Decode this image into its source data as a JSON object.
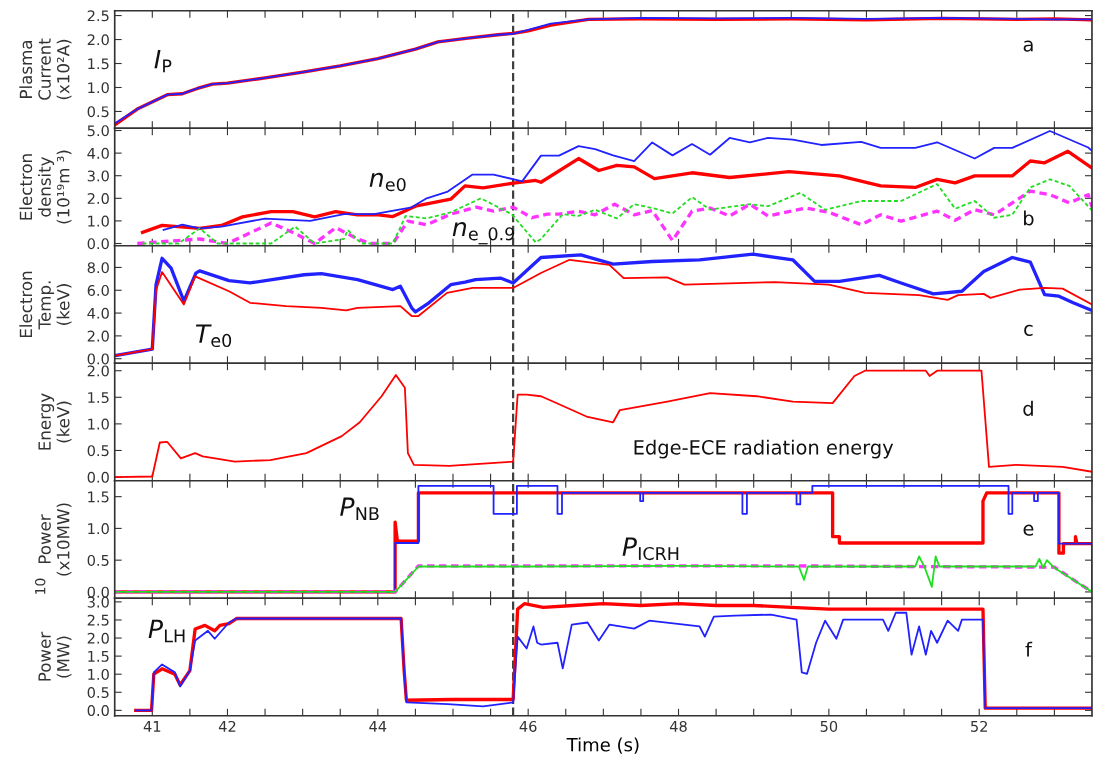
{
  "chart_data": [
    {
      "type": "line",
      "ylabel": "Plasma\nCurrent\n(x10²A)",
      "xlim": [
        40.5,
        53.5
      ],
      "ylim": [
        0.15,
        2.6
      ],
      "tick_labels": "y",
      "xticks": [
        41,
        {
          "value": 41.5,
          "label": null
        },
        42,
        {
          "value": 42.5,
          "label": null
        },
        {
          "value": 43,
          "label": null
        },
        {
          "value": 43.5,
          "label": null
        },
        44,
        {
          "value": 44.5,
          "label": null
        },
        {
          "value": 45,
          "label": null
        },
        {
          "value": 45.5,
          "label": null
        },
        46,
        {
          "value": 46.5,
          "label": null
        },
        {
          "value": 47,
          "label": null
        },
        {
          "value": 47.5,
          "label": null
        },
        48,
        {
          "value": 48.5,
          "label": null
        },
        {
          "value": 49,
          "label": null
        },
        {
          "value": 49.5,
          "label": null
        },
        50,
        {
          "value": 50.5,
          "label": null
        },
        {
          "value": 51,
          "label": null
        },
        {
          "value": 51.5,
          "label": null
        },
        52,
        {
          "value": 52.5,
          "label": null
        },
        {
          "value": 53,
          "label": null
        }
      ],
      "yticks": [
        {
          "value": 0.5,
          "label": "0.5"
        },
        {
          "value": 1,
          "label": "1.0"
        },
        {
          "value": 1.5,
          "label": "1.5"
        },
        {
          "value": 2,
          "label": "2.0"
        },
        {
          "value": 2.5,
          "label": "2.5"
        }
      ],
      "series": [
        {
          "color": "#ff0000",
          "x": [
            40.5,
            40.8,
            41.2,
            41.4,
            41.6,
            41.8,
            42.0,
            42.5,
            43.0,
            43.5,
            44.0,
            44.5,
            44.8,
            45.2,
            45.6,
            45.8,
            46.0,
            46.3,
            46.8,
            47.5,
            48.5,
            49.5,
            50.5,
            51.5,
            52.5,
            53.0,
            53.5
          ],
          "values": [
            0.22,
            0.55,
            0.85,
            0.87,
            0.98,
            1.07,
            1.09,
            1.2,
            1.32,
            1.45,
            1.6,
            1.8,
            1.95,
            2.03,
            2.1,
            2.13,
            2.18,
            2.3,
            2.42,
            2.43,
            2.42,
            2.43,
            2.41,
            2.44,
            2.42,
            2.43,
            2.41
          ]
        },
        {
          "color": "#2222ff",
          "x": [
            40.5,
            40.8,
            41.2,
            41.4,
            41.6,
            41.8,
            42.0,
            42.5,
            43.0,
            43.5,
            44.0,
            44.5,
            44.8,
            45.2,
            45.6,
            45.8,
            46.0,
            46.3,
            46.8,
            47.5,
            48.5,
            49.5,
            50.5,
            51.5,
            52.5,
            53.0,
            53.5
          ],
          "values": [
            0.25,
            0.55,
            0.85,
            0.87,
            0.98,
            1.07,
            1.09,
            1.2,
            1.32,
            1.45,
            1.6,
            1.8,
            1.95,
            2.03,
            2.1,
            2.12,
            2.2,
            2.33,
            2.42,
            2.45,
            2.44,
            2.45,
            2.43,
            2.45,
            2.43,
            2.42,
            2.42
          ]
        }
      ],
      "ref_lines": [
        {
          "axis": "x",
          "value": 45.8,
          "color": "#404040",
          "line_style": "dashed"
        }
      ],
      "annotations": [
        "a",
        "I$_{P}$"
      ]
    },
    {
      "type": "line",
      "ylabel": "Electron\ndensity\n(10¹⁹m ³)",
      "xlim": [
        40.5,
        53.5
      ],
      "ylim": [
        -0.1,
        5.1
      ],
      "tick_labels": "y",
      "xticks": [
        41,
        {
          "value": 41.5,
          "label": null
        },
        42,
        {
          "value": 42.5,
          "label": null
        },
        {
          "value": 43,
          "label": null
        },
        {
          "value": 43.5,
          "label": null
        },
        44,
        {
          "value": 44.5,
          "label": null
        },
        {
          "value": 45,
          "label": null
        },
        {
          "value": 45.5,
          "label": null
        },
        46,
        {
          "value": 46.5,
          "label": null
        },
        {
          "value": 47,
          "label": null
        },
        {
          "value": 47.5,
          "label": null
        },
        48,
        {
          "value": 48.5,
          "label": null
        },
        {
          "value": 49,
          "label": null
        },
        {
          "value": 49.5,
          "label": null
        },
        50,
        {
          "value": 50.5,
          "label": null
        },
        {
          "value": 51,
          "label": null
        },
        {
          "value": 51.5,
          "label": null
        },
        52,
        {
          "value": 52.5,
          "label": null
        },
        {
          "value": 53,
          "label": null
        }
      ],
      "yticks": [
        {
          "value": 0,
          "label": "0.0"
        },
        {
          "value": 1,
          "label": "1.0"
        },
        {
          "value": 2,
          "label": "2.0"
        },
        {
          "value": 3,
          "label": "3.0"
        },
        {
          "value": 4,
          "label": "4.0"
        },
        {
          "value": 5,
          "label": "5.0"
        }
      ],
      "series": [
        {
          "color": "#ff0000",
          "x": [
            40.87,
            41.13,
            41.63,
            41.92,
            42.2,
            42.58,
            42.87,
            43.16,
            43.44,
            43.73,
            44.01,
            44.2,
            44.5,
            44.97,
            45.16,
            45.4,
            45.78,
            46.1,
            46.17,
            46.67,
            46.94,
            47.18,
            47.41,
            47.68,
            48.18,
            48.68,
            49.47,
            50.14,
            50.69,
            51.15,
            51.44,
            51.68,
            51.94,
            52.44,
            52.68,
            52.87,
            53.18,
            53.5
          ],
          "values": [
            0.49,
            0.8,
            0.67,
            0.8,
            1.18,
            1.41,
            1.41,
            1.18,
            1.41,
            1.27,
            1.27,
            1.19,
            1.65,
            1.96,
            2.55,
            2.46,
            2.66,
            2.79,
            2.71,
            3.76,
            3.23,
            3.46,
            3.39,
            2.87,
            3.13,
            2.92,
            3.18,
            2.99,
            2.55,
            2.48,
            2.84,
            2.68,
            2.99,
            2.99,
            3.65,
            3.57,
            4.08,
            3.34
          ]
        },
        {
          "color": "#2222ff",
          "x": [
            41.15,
            41.4,
            41.63,
            41.92,
            42.5,
            43.1,
            43.55,
            43.95,
            44.45,
            44.65,
            44.93,
            45.26,
            45.54,
            45.92,
            46.17,
            46.41,
            46.67,
            46.89,
            47.13,
            47.41,
            47.65,
            47.92,
            48.18,
            48.42,
            48.68,
            48.95,
            49.19,
            49.52,
            49.9,
            50.43,
            50.69,
            51.15,
            51.44,
            51.94,
            52.2,
            52.44,
            52.94,
            53.45,
            53.5
          ],
          "values": [
            0.6,
            0.83,
            0.67,
            0.75,
            1.1,
            1.0,
            1.3,
            1.3,
            1.6,
            2.0,
            2.3,
            3.05,
            3.05,
            2.75,
            3.89,
            3.89,
            4.31,
            4.18,
            3.9,
            3.65,
            4.47,
            3.9,
            4.4,
            3.93,
            4.67,
            4.48,
            4.67,
            4.6,
            4.36,
            4.5,
            4.23,
            4.23,
            4.48,
            3.76,
            4.23,
            4.23,
            4.98,
            4.25,
            4.1
          ]
        },
        {
          "color": "#ff33ff",
          "line_style": "dashed",
          "x": [
            40.8,
            41.63,
            42.0,
            42.58,
            42.87,
            43.16,
            43.44,
            43.73,
            43.9,
            44.2,
            44.4,
            44.65,
            44.97,
            45.31,
            45.54,
            45.8,
            46.05,
            46.25,
            46.41,
            46.67,
            46.89,
            47.15,
            47.41,
            47.65,
            47.92,
            48.18,
            48.42,
            48.68,
            48.95,
            49.19,
            49.69,
            50.0,
            50.43,
            50.69,
            50.96,
            51.44,
            51.68,
            51.94,
            52.2,
            52.68,
            52.94,
            53.2,
            53.45,
            53.5
          ],
          "values": [
            0,
            0.2,
            0,
            0.91,
            0.49,
            0,
            0.7,
            0.2,
            0,
            0,
            0.99,
            0.83,
            1.3,
            1.61,
            1.43,
            1.61,
            1.14,
            1.3,
            1.3,
            1.43,
            1.27,
            1.74,
            1.27,
            1.46,
            0.13,
            1.43,
            1.57,
            1.22,
            1.74,
            1.22,
            1.57,
            1.38,
            0.83,
            1.27,
            0.99,
            1.43,
            1.03,
            1.5,
            1.27,
            2.32,
            2.16,
            1.8,
            2.16,
            1.61
          ]
        },
        {
          "color": "#22dd22",
          "line_style": "dashed",
          "x": [
            40.87,
            41.35,
            41.63,
            41.87,
            42.58,
            42.9,
            43.16,
            43.55,
            43.6,
            43.78,
            44.2,
            44.37,
            44.65,
            44.97,
            45.37,
            45.78,
            46.1,
            46.17,
            46.46,
            46.67,
            46.89,
            47.18,
            47.41,
            47.65,
            47.92,
            48.18,
            48.42,
            48.95,
            49.19,
            49.62,
            49.95,
            50.43,
            50.96,
            51.44,
            51.68,
            51.94,
            52.2,
            52.44,
            52.68,
            52.94,
            53.2,
            53.5
          ],
          "values": [
            0,
            0,
            0.67,
            0,
            0,
            0.75,
            0,
            0.2,
            0.6,
            0,
            0,
            1.22,
            1.11,
            1.38,
            2.0,
            1.3,
            0.05,
            0.2,
            1.3,
            1.22,
            1.49,
            1.11,
            1.74,
            1.57,
            1.33,
            2.05,
            1.5,
            1.74,
            1.65,
            2.24,
            1.49,
            1.88,
            1.88,
            2.63,
            1.54,
            1.88,
            1.14,
            1.27,
            2.48,
            2.84,
            2.55,
            1.46
          ]
        }
      ],
      "ref_lines": [
        {
          "axis": "x",
          "value": 45.8,
          "color": "#404040",
          "line_style": "dashed"
        }
      ],
      "annotations": [
        "b",
        "n$_{e0}$",
        "n$_{e_0.9}$"
      ]
    },
    {
      "type": "line",
      "ylabel": "Electron\nTemp.\n(keV)",
      "xlim": [
        40.5,
        53.5
      ],
      "ylim": [
        -0.4,
        9.9
      ],
      "tick_labels": "y",
      "xticks": [
        41,
        {
          "value": 41.5,
          "label": null
        },
        42,
        {
          "value": 42.5,
          "label": null
        },
        {
          "value": 43,
          "label": null
        },
        {
          "value": 43.5,
          "label": null
        },
        44,
        {
          "value": 44.5,
          "label": null
        },
        {
          "value": 45,
          "label": null
        },
        {
          "value": 45.5,
          "label": null
        },
        46,
        {
          "value": 46.5,
          "label": null
        },
        {
          "value": 47,
          "label": null
        },
        {
          "value": 47.5,
          "label": null
        },
        48,
        {
          "value": 48.5,
          "label": null
        },
        {
          "value": 49,
          "label": null
        },
        {
          "value": 49.5,
          "label": null
        },
        50,
        {
          "value": 50.5,
          "label": null
        },
        {
          "value": 51,
          "label": null
        },
        {
          "value": 51.5,
          "label": null
        },
        52,
        {
          "value": 52.5,
          "label": null
        },
        {
          "value": 53,
          "label": null
        }
      ],
      "yticks": [
        {
          "value": 0,
          "label": "0.0"
        },
        {
          "value": 2,
          "label": "2.0"
        },
        {
          "value": 4,
          "label": "4.0"
        },
        {
          "value": 6,
          "label": "6.0"
        },
        {
          "value": 8,
          "label": "8.0"
        }
      ],
      "series": [
        {
          "color": "#2222ff",
          "x": [
            40.5,
            41.0,
            41.05,
            41.13,
            41.25,
            41.42,
            41.58,
            41.63,
            42.02,
            42.3,
            43.02,
            43.25,
            43.73,
            44.2,
            44.3,
            44.45,
            44.5,
            44.68,
            44.97,
            45.16,
            45.3,
            45.63,
            45.8,
            46.17,
            46.7,
            47.13,
            47.65,
            48.28,
            48.99,
            49.52,
            49.81,
            50.14,
            50.67,
            50.96,
            51.39,
            51.77,
            52.06,
            52.44,
            52.68,
            52.87,
            53.06,
            53.25,
            53.5
          ],
          "values": [
            0.26,
            0.84,
            6.5,
            8.8,
            7.94,
            5.04,
            7.5,
            7.7,
            6.84,
            6.64,
            7.36,
            7.45,
            6.93,
            6.06,
            6.35,
            4.46,
            4.1,
            4.9,
            6.49,
            6.72,
            6.93,
            7.07,
            6.64,
            8.87,
            9.1,
            8.29,
            8.52,
            8.67,
            9.16,
            8.67,
            6.78,
            6.78,
            7.3,
            6.64,
            5.68,
            5.91,
            7.65,
            8.87,
            8.46,
            5.62,
            5.48,
            4.9,
            4.23
          ]
        },
        {
          "color": "#ff0000",
          "x": [
            40.5,
            41.0,
            41.05,
            41.13,
            41.42,
            41.57,
            42.02,
            42.3,
            42.78,
            43.25,
            43.58,
            43.73,
            44.3,
            44.45,
            44.54,
            44.92,
            45.26,
            45.8,
            46.17,
            46.55,
            47.08,
            47.27,
            47.85,
            48.08,
            49.28,
            50.0,
            50.48,
            51.2,
            51.58,
            51.72,
            52.06,
            52.15,
            52.54,
            52.87,
            53.11,
            53.5
          ],
          "values": [
            0.26,
            0.84,
            6.0,
            7.6,
            4.75,
            7.22,
            5.91,
            4.9,
            4.61,
            4.46,
            4.23,
            4.46,
            4.61,
            3.74,
            3.74,
            5.77,
            6.2,
            6.2,
            7.51,
            8.67,
            8.23,
            7.07,
            7.13,
            6.49,
            6.72,
            6.49,
            5.77,
            5.57,
            5.16,
            5.57,
            5.68,
            5.33,
            6.06,
            6.2,
            6.14,
            4.75
          ]
        }
      ],
      "ref_lines": [
        {
          "axis": "x",
          "value": 45.8,
          "color": "#404040",
          "line_style": "dashed"
        }
      ],
      "annotations": [
        "c",
        "T$_{e0}$"
      ]
    },
    {
      "type": "line",
      "ylabel": "Energy\n(keV)",
      "xlim": [
        40.5,
        53.5
      ],
      "ylim": [
        -0.07,
        2.14
      ],
      "tick_labels": "y",
      "xticks": [
        41,
        {
          "value": 41.5,
          "label": null
        },
        42,
        {
          "value": 42.5,
          "label": null
        },
        {
          "value": 43,
          "label": null
        },
        {
          "value": 43.5,
          "label": null
        },
        44,
        {
          "value": 44.5,
          "label": null
        },
        {
          "value": 45,
          "label": null
        },
        {
          "value": 45.5,
          "label": null
        },
        46,
        {
          "value": 46.5,
          "label": null
        },
        {
          "value": 47,
          "label": null
        },
        {
          "value": 47.5,
          "label": null
        },
        48,
        {
          "value": 48.5,
          "label": null
        },
        {
          "value": 49,
          "label": null
        },
        {
          "value": 49.5,
          "label": null
        },
        50,
        {
          "value": 50.5,
          "label": null
        },
        {
          "value": 51,
          "label": null
        },
        {
          "value": 51.5,
          "label": null
        },
        52,
        {
          "value": 52.5,
          "label": null
        },
        {
          "value": 53,
          "label": null
        }
      ],
      "yticks": [
        {
          "value": 0,
          "label": "0.0"
        },
        {
          "value": 0.5,
          "label": "0.5"
        },
        {
          "value": 1,
          "label": "1.0"
        },
        {
          "value": 1.5,
          "label": "1.5"
        },
        {
          "value": 2,
          "label": "2.0"
        }
      ],
      "series": [
        {
          "color": "#ff0000",
          "x": [
            40.5,
            41.0,
            41.1,
            41.2,
            41.38,
            41.57,
            41.67,
            42.1,
            42.57,
            43.05,
            43.52,
            43.76,
            44.05,
            44.24,
            44.36,
            44.4,
            44.48,
            44.95,
            45.8,
            45.86,
            45.98,
            46.17,
            46.33,
            46.79,
            47.13,
            47.22,
            47.85,
            48.42,
            49.04,
            49.52,
            50.05,
            50.34,
            50.48,
            51.29,
            51.34,
            51.44,
            52.03,
            52.13,
            52.49,
            53.11,
            53.5
          ],
          "values": [
            0,
            0.01,
            0.65,
            0.66,
            0.35,
            0.45,
            0.39,
            0.29,
            0.32,
            0.45,
            0.77,
            1.03,
            1.52,
            1.92,
            1.68,
            0.45,
            0.23,
            0.21,
            0.29,
            1.55,
            1.55,
            1.52,
            1.42,
            1.13,
            1.03,
            1.26,
            1.42,
            1.58,
            1.52,
            1.42,
            1.39,
            1.9,
            2.0,
            2.0,
            1.9,
            2.0,
            2.0,
            0.19,
            0.23,
            0.19,
            0.1
          ]
        }
      ],
      "ref_lines": [
        {
          "axis": "x",
          "value": 45.8,
          "color": "#404040",
          "line_style": "dashed"
        }
      ],
      "annotations": [
        "d",
        "Edge-ECE radiation energy"
      ]
    },
    {
      "type": "line",
      "ylabel": "Power\n(x10MW)",
      "xlim": [
        40.5,
        53.5
      ],
      "ylim": [
        -0.1,
        1.75
      ],
      "tick_labels": "y",
      "xticks": [
        41,
        {
          "value": 41.5,
          "label": null
        },
        42,
        {
          "value": 42.5,
          "label": null
        },
        {
          "value": 43,
          "label": null
        },
        {
          "value": 43.5,
          "label": null
        },
        44,
        {
          "value": 44.5,
          "label": null
        },
        {
          "value": 45,
          "label": null
        },
        {
          "value": 45.5,
          "label": null
        },
        46,
        {
          "value": 46.5,
          "label": null
        },
        {
          "value": 47,
          "label": null
        },
        {
          "value": 47.5,
          "label": null
        },
        48,
        {
          "value": 48.5,
          "label": null
        },
        {
          "value": 49,
          "label": null
        },
        {
          "value": 49.5,
          "label": null
        },
        50,
        {
          "value": 50.5,
          "label": null
        },
        {
          "value": 51,
          "label": null
        },
        {
          "value": 51.5,
          "label": null
        },
        52,
        {
          "value": 52.5,
          "label": null
        },
        {
          "value": 53,
          "label": null
        }
      ],
      "yticks": [
        {
          "value": 0,
          "label": "0.0"
        },
        {
          "value": 0.5,
          "label": "0.5"
        },
        {
          "value": 1,
          "label": "1.0"
        },
        {
          "value": 1.5,
          "label": "1.5"
        }
      ],
      "series": [
        {
          "color": "#ff0000",
          "x": [
            40.5,
            44.23,
            44.23,
            44.26,
            44.54,
            44.54,
            50.05,
            50.05,
            50.14,
            50.14,
            52.05,
            52.05,
            52.1,
            53.06,
            53.06,
            53.12,
            53.12,
            53.28,
            53.28,
            53.3,
            53.5
          ],
          "values": [
            0,
            0,
            1.1,
            0.8,
            0.8,
            1.56,
            1.56,
            0.87,
            0.87,
            0.77,
            0.77,
            1.43,
            1.56,
            1.56,
            0.61,
            0.61,
            0.76,
            0.76,
            0.87,
            0.76,
            0.76
          ]
        },
        {
          "color": "#2222ff",
          "x": [
            40.5,
            44.23,
            44.23,
            44.54,
            44.54,
            45.54,
            45.54,
            45.85,
            45.85,
            46.39,
            46.39,
            46.45,
            46.45,
            47.49,
            47.49,
            47.53,
            47.53,
            48.85,
            48.85,
            48.91,
            48.91,
            49.57,
            49.57,
            49.62,
            49.62,
            49.78,
            49.78,
            52.39,
            52.39,
            52.44,
            52.44,
            52.73,
            52.73,
            52.78,
            52.78,
            53.06,
            53.06,
            53.5,
            53.5
          ],
          "values": [
            0,
            0,
            0.77,
            0.77,
            1.67,
            1.67,
            1.23,
            1.23,
            1.67,
            1.67,
            1.23,
            1.23,
            1.56,
            1.56,
            1.43,
            1.43,
            1.56,
            1.56,
            1.23,
            1.23,
            1.56,
            1.56,
            1.38,
            1.38,
            1.56,
            1.56,
            1.67,
            1.67,
            1.23,
            1.23,
            1.56,
            1.56,
            1.43,
            1.43,
            1.56,
            1.56,
            0.76,
            0.76,
            0
          ]
        },
        {
          "color": "#ff33ff",
          "line_style": "dashed",
          "x": [
            40.5,
            44.23,
            44.54,
            49.5,
            51.0,
            53.0,
            53.5
          ],
          "values": [
            0,
            0,
            0.41,
            0.41,
            0.4,
            0.39,
            0
          ]
        },
        {
          "color": "#22dd22",
          "x": [
            40.5,
            44.23,
            44.54,
            46.0,
            48.0,
            49.6,
            49.67,
            49.72,
            51.15,
            51.2,
            51.27,
            51.37,
            51.42,
            51.47,
            52.75,
            52.8,
            52.85,
            52.9,
            53.0,
            53.5
          ],
          "values": [
            0,
            0,
            0.4,
            0.4,
            0.41,
            0.4,
            0.19,
            0.4,
            0.4,
            0.56,
            0.4,
            0.08,
            0.56,
            0.4,
            0.4,
            0.52,
            0.38,
            0.5,
            0.38,
            0
          ]
        }
      ],
      "ref_lines": [
        {
          "axis": "x",
          "value": 45.8,
          "color": "#404040",
          "line_style": "dashed"
        }
      ],
      "annotations": [
        "e",
        "10",
        "P$_{NB}$",
        "P$_{ICRH}$"
      ]
    },
    {
      "type": "line",
      "ylabel": "Power\n(MW)",
      "xlabel": "Time (s)",
      "xlim": [
        40.5,
        53.5
      ],
      "ylim": [
        -0.15,
        3.1
      ],
      "xticks": [
        41,
        {
          "value": 41.5,
          "label": null
        },
        42,
        {
          "value": 42.5,
          "label": null
        },
        {
          "value": 43,
          "label": null
        },
        {
          "value": 43.5,
          "label": null
        },
        44,
        {
          "value": 44.5,
          "label": null
        },
        {
          "value": 45,
          "label": null
        },
        {
          "value": 45.5,
          "label": null
        },
        46,
        {
          "value": 46.5,
          "label": null
        },
        {
          "value": 47,
          "label": null
        },
        {
          "value": 47.5,
          "label": null
        },
        48,
        {
          "value": 48.5,
          "label": null
        },
        {
          "value": 49,
          "label": null
        },
        {
          "value": 49.5,
          "label": null
        },
        50,
        {
          "value": 50.5,
          "label": null
        },
        {
          "value": 51,
          "label": null
        },
        {
          "value": 51.5,
          "label": null
        },
        52,
        {
          "value": 52.5,
          "label": null
        },
        {
          "value": 53,
          "label": null
        }
      ],
      "yticks": [
        {
          "value": 0,
          "label": "0.0"
        },
        {
          "value": 0.5,
          "label": "0.5"
        },
        {
          "value": 1,
          "label": "1.0"
        },
        {
          "value": 1.5,
          "label": "1.5"
        },
        {
          "value": 2,
          "label": "2.0"
        },
        {
          "value": 2.5,
          "label": "2.5"
        },
        {
          "value": 3,
          "label": "3.0"
        }
      ],
      "series": [
        {
          "color": "#ff0000",
          "x": [
            40.78,
            40.99,
            41.02,
            41.13,
            41.3,
            41.37,
            41.5,
            41.57,
            41.7,
            41.83,
            41.9,
            42.02,
            42.12,
            44.31,
            44.35,
            44.38,
            45.0,
            45.8,
            45.86,
            45.95,
            46.2,
            46.6,
            47.0,
            47.5,
            48.0,
            48.5,
            49.0,
            49.5,
            50.0,
            52.05,
            52.08,
            53.5
          ],
          "values": [
            0,
            0,
            1.0,
            1.15,
            1.0,
            0.7,
            1.1,
            2.25,
            2.35,
            2.2,
            2.35,
            2.4,
            2.54,
            2.54,
            1.1,
            0.28,
            0.3,
            0.3,
            2.8,
            2.95,
            2.85,
            2.9,
            2.95,
            2.9,
            2.95,
            2.9,
            2.9,
            2.85,
            2.8,
            2.8,
            0.06,
            0.06
          ]
        },
        {
          "color": "#2222ff",
          "x": [
            40.78,
            40.99,
            41.02,
            41.13,
            41.3,
            41.37,
            41.5,
            41.57,
            41.74,
            41.83,
            42.02,
            42.12,
            44.31,
            44.35,
            44.38,
            44.93,
            45.4,
            45.8,
            45.86,
            45.98,
            46.07,
            46.12,
            46.17,
            46.39,
            46.46,
            46.58,
            46.79,
            46.94,
            47.08,
            47.41,
            47.61,
            48.28,
            48.35,
            48.47,
            48.75,
            49.23,
            49.57,
            49.64,
            49.71,
            49.83,
            49.95,
            50.1,
            50.19,
            50.72,
            50.79,
            50.89,
            51.03,
            51.1,
            51.2,
            51.29,
            51.36,
            51.44,
            51.58,
            51.72,
            51.77,
            52.05,
            52.08,
            53.5
          ],
          "values": [
            0,
            0,
            1.05,
            1.27,
            1.05,
            0.66,
            1.1,
            1.93,
            2.2,
            1.98,
            2.43,
            2.54,
            2.54,
            1.1,
            0.22,
            0.17,
            0.11,
            0.22,
            2.04,
            1.71,
            2.32,
            1.87,
            1.82,
            1.87,
            1.16,
            2.37,
            2.43,
            1.93,
            2.37,
            2.26,
            2.48,
            2.32,
            2.04,
            2.59,
            2.62,
            2.65,
            2.51,
            1.05,
            1.01,
            1.87,
            2.48,
            1.98,
            2.51,
            2.51,
            2.2,
            2.7,
            2.7,
            1.54,
            2.32,
            1.54,
            2.2,
            1.87,
            2.48,
            2.2,
            2.51,
            2.51,
            0.06,
            0.06
          ]
        }
      ],
      "ref_lines": [
        {
          "axis": "x",
          "value": 45.8,
          "color": "#404040",
          "line_style": "dashed"
        }
      ],
      "annotations": [
        "f",
        "P$_{LH}$"
      ]
    }
  ]
}
